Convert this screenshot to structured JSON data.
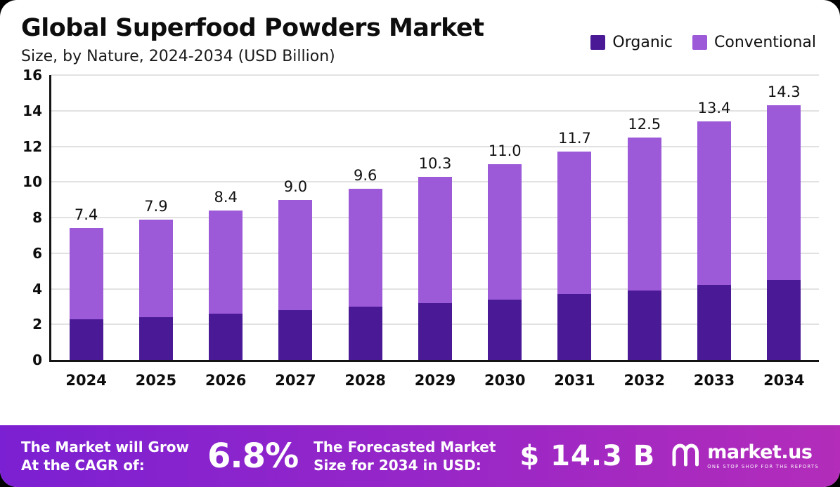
{
  "page": {
    "title": "Global Superfood Powders Market",
    "subtitle": "Size, by Nature, 2024-2034 (USD Billion)"
  },
  "legend": [
    {
      "label": "Organic",
      "color": "#4a1a96"
    },
    {
      "label": "Conventional",
      "color": "#9c59d8"
    }
  ],
  "chart_data": {
    "type": "bar",
    "stacked": true,
    "title": "Global Superfood Powders Market",
    "subtitle": "Size, by Nature, 2024-2034 (USD Billion)",
    "categories": [
      "2024",
      "2025",
      "2026",
      "2027",
      "2028",
      "2029",
      "2030",
      "2031",
      "2032",
      "2033",
      "2034"
    ],
    "series": [
      {
        "name": "Organic",
        "color": "#4a1a96",
        "values": [
          2.3,
          2.4,
          2.6,
          2.8,
          3.0,
          3.2,
          3.4,
          3.7,
          3.9,
          4.2,
          4.5
        ]
      },
      {
        "name": "Conventional",
        "color": "#9c59d8",
        "values": [
          5.1,
          5.5,
          5.8,
          6.2,
          6.6,
          7.1,
          7.6,
          8.0,
          8.6,
          9.2,
          9.8
        ]
      }
    ],
    "totals": [
      7.4,
      7.9,
      8.4,
      9.0,
      9.6,
      10.3,
      11.0,
      11.7,
      12.5,
      13.4,
      14.3
    ],
    "xlabel": "",
    "ylabel": "",
    "ylim": [
      0,
      16
    ],
    "yticks": [
      0,
      2,
      4,
      6,
      8,
      10,
      12,
      14,
      16
    ],
    "grid": true,
    "legend_position": "top-right"
  },
  "footer": {
    "cagr_label_line1": "The Market will Grow",
    "cagr_label_line2": "At the CAGR of:",
    "cagr_value": "6.8%",
    "forecast_label_line1": "The Forecasted Market",
    "forecast_label_line2": "Size for 2034 in USD:",
    "forecast_value": "$ 14.3 B",
    "brand": "market.us",
    "brand_tagline": "One Stop Shop For The Reports"
  }
}
